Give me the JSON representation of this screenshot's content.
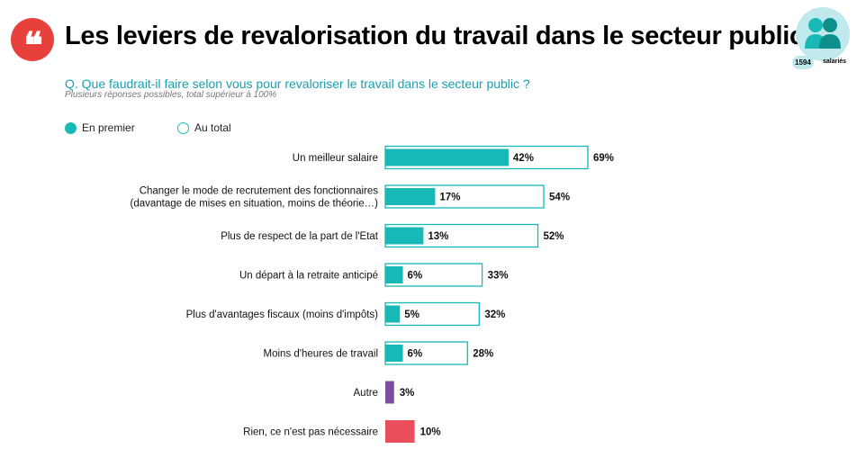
{
  "header": {
    "title": "Les leviers de revalorisation du travail dans le secteur public",
    "logo_glyph": "❝",
    "badge_number": "1594",
    "badge_label": "salariés"
  },
  "question": "Q. Que faudrait-il faire selon vous pour revaloriser le travail dans le secteur public ?",
  "note": "Plusieurs réponses possibles, total supérieur à 100%",
  "legend": {
    "first": "En premier",
    "total": "Au total"
  },
  "colors": {
    "teal": "#17b8b5",
    "purple": "#7b4fa0",
    "red": "#e84f5a",
    "logo": "#e8413c"
  },
  "chart_data": {
    "type": "bar",
    "orientation": "horizontal",
    "categories": [
      [
        "Un meilleur salaire"
      ],
      [
        "Changer le mode de recrutement des fonctionnaires",
        "(davantage de mises en situation, moins de théorie…)"
      ],
      [
        "Plus de respect de la part de l'Etat"
      ],
      [
        "Un départ à la retraite anticipé"
      ],
      [
        "Plus d'avantages fiscaux (moins d'impôts)"
      ],
      [
        "Moins d'heures de travail"
      ],
      [
        "Autre"
      ],
      [
        "Rien, ce n'est pas nécessaire"
      ]
    ],
    "series": [
      {
        "name": "En premier",
        "values": [
          42,
          17,
          13,
          6,
          5,
          6,
          null,
          null
        ]
      },
      {
        "name": "Au total",
        "values": [
          69,
          54,
          52,
          33,
          32,
          28,
          3,
          10
        ]
      }
    ],
    "value_labels_first": [
      "42%",
      "17%",
      "13%",
      "6%",
      "5%",
      "6%",
      "",
      ""
    ],
    "value_labels_total": [
      "69%",
      "54%",
      "52%",
      "33%",
      "32%",
      "28%",
      "3%",
      "10%"
    ],
    "single_colors": [
      null,
      null,
      null,
      null,
      null,
      null,
      "#7b4fa0",
      "#e84f5a"
    ],
    "legend_position": "top-left"
  }
}
